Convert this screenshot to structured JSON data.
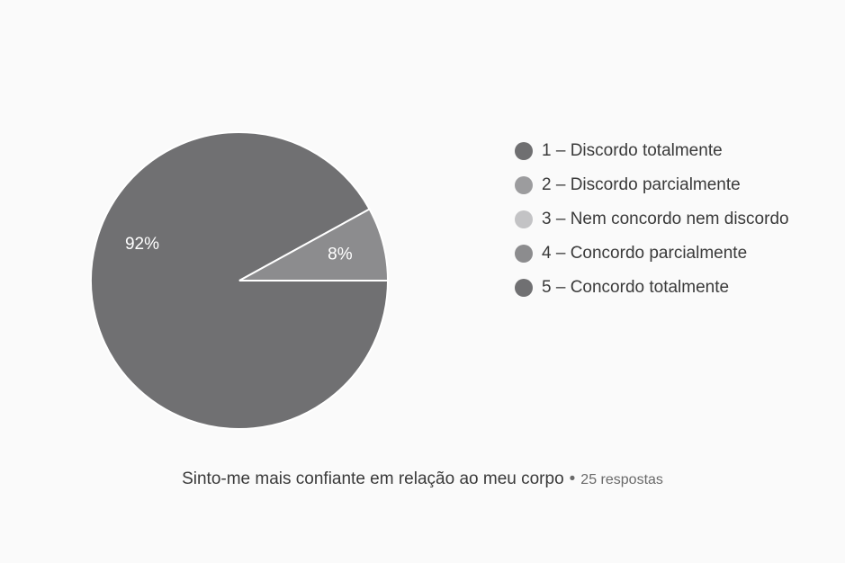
{
  "chart_data": {
    "type": "pie",
    "categories": [
      "1 – Discordo totalmente",
      "2 – Discordo parcialmente",
      "3 – Nem concordo nem discordo",
      "4 – Concordo parcialmente",
      "5 – Concordo totalmente"
    ],
    "values": [
      0,
      0,
      0,
      8,
      92
    ],
    "slice_labels": [
      "",
      "",
      "",
      "8%",
      "92%"
    ],
    "colors": [
      "#6f6f71",
      "#9c9c9e",
      "#c3c3c5",
      "#8c8c8e",
      "#707072"
    ],
    "legend": "right",
    "title": "Sinto-me mais confiante em relação ao meu corpo",
    "subtitle": "25 respostas"
  },
  "caption": {
    "question": "Sinto-me mais confiante em relação ao meu corpo",
    "separator": "•",
    "responses": "25 respostas"
  }
}
